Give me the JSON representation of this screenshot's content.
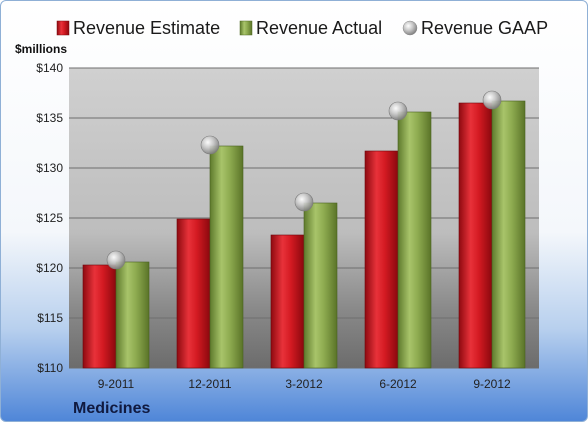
{
  "chart_data": {
    "type": "bar",
    "categories": [
      "9-2011",
      "12-2011",
      "3-2012",
      "6-2012",
      "9-2012"
    ],
    "series": [
      {
        "name": "Revenue Estimate",
        "kind": "bar",
        "color": "#c8141c",
        "values": [
          120.3,
          124.9,
          123.3,
          131.7,
          136.5
        ]
      },
      {
        "name": "Revenue Actual",
        "kind": "bar",
        "color": "#8aa84c",
        "values": [
          120.6,
          132.2,
          126.5,
          135.6,
          136.7
        ]
      },
      {
        "name": "Revenue GAAP",
        "kind": "marker",
        "color": "#b8b8b8",
        "values": [
          120.8,
          132.3,
          126.6,
          135.7,
          136.8
        ]
      }
    ],
    "ylabel": "$millions",
    "ylim": [
      110,
      140
    ],
    "yticks": [
      110,
      115,
      120,
      125,
      130,
      135,
      140
    ],
    "ytick_labels": [
      "$110",
      "$115",
      "$120",
      "$125",
      "$130",
      "$135",
      "$140"
    ],
    "grid": true,
    "legend_position": "top",
    "company": "Medicines"
  }
}
